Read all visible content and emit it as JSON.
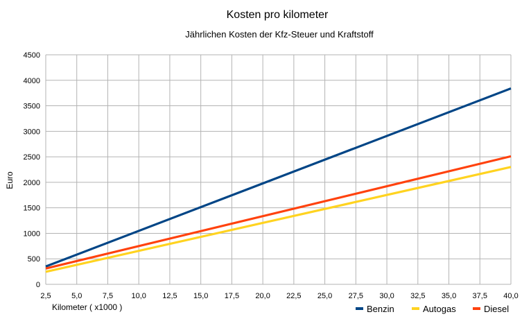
{
  "chart_data": {
    "type": "line",
    "title": "Kosten pro kilometer",
    "subtitle": "Jährlichen Kosten der Kfz-Steuer und Kraftstoff",
    "xlabel": "Kilometer ( x1000 )",
    "ylabel": "Euro",
    "xlim": [
      2.5,
      40
    ],
    "ylim": [
      0,
      4500
    ],
    "x_ticks": [
      "2,5",
      "5,0",
      "7,5",
      "10,0",
      "12,5",
      "15,0",
      "17,5",
      "20,0",
      "22,5",
      "25,0",
      "27,5",
      "30,0",
      "32,5",
      "35,0",
      "37,5",
      "40,0"
    ],
    "y_ticks": [
      "0",
      "500",
      "1000",
      "1500",
      "2000",
      "2500",
      "3000",
      "3500",
      "4000",
      "4500"
    ],
    "grid": true,
    "legend_position": "bottom-right",
    "series": [
      {
        "name": "Benzin",
        "color": "#004586",
        "x": [
          2.5,
          40
        ],
        "y": [
          350,
          3840
        ]
      },
      {
        "name": "Autogas",
        "color": "#ffd320",
        "x": [
          2.5,
          40
        ],
        "y": [
          245,
          2300
        ]
      },
      {
        "name": "Diesel",
        "color": "#ff420e",
        "x": [
          2.5,
          40
        ],
        "y": [
          310,
          2510
        ]
      }
    ]
  }
}
